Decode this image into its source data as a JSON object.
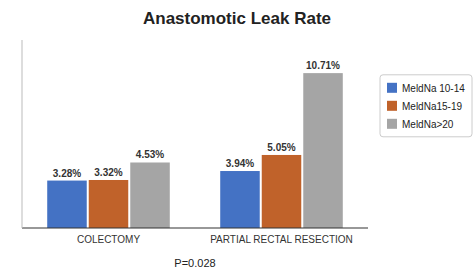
{
  "chart_data": {
    "type": "bar",
    "title": "Anastomotic Leak Rate",
    "categories": [
      "COLECTOMY",
      "PARTIAL RECTAL RESECTION"
    ],
    "series": [
      {
        "name": "MeldNa 10-14",
        "color": "#4472c4",
        "values": [
          3.28,
          3.94
        ],
        "value_labels": [
          "3.28%",
          "3.94%"
        ]
      },
      {
        "name": "MeldNa15-19",
        "color": "#c0622a",
        "values": [
          3.32,
          5.05
        ],
        "value_labels": [
          "3.32%",
          "5.05%"
        ]
      },
      {
        "name": "MeldNa>20",
        "color": "#a5a5a5",
        "values": [
          4.53,
          10.71
        ],
        "value_labels": [
          "4.53%",
          "10.71%"
        ]
      }
    ],
    "ylim": [
      0,
      13
    ],
    "data_labels": true,
    "tick_labels": "x",
    "grid": false,
    "legend": "right",
    "annotations": [
      "P=0.028"
    ]
  }
}
